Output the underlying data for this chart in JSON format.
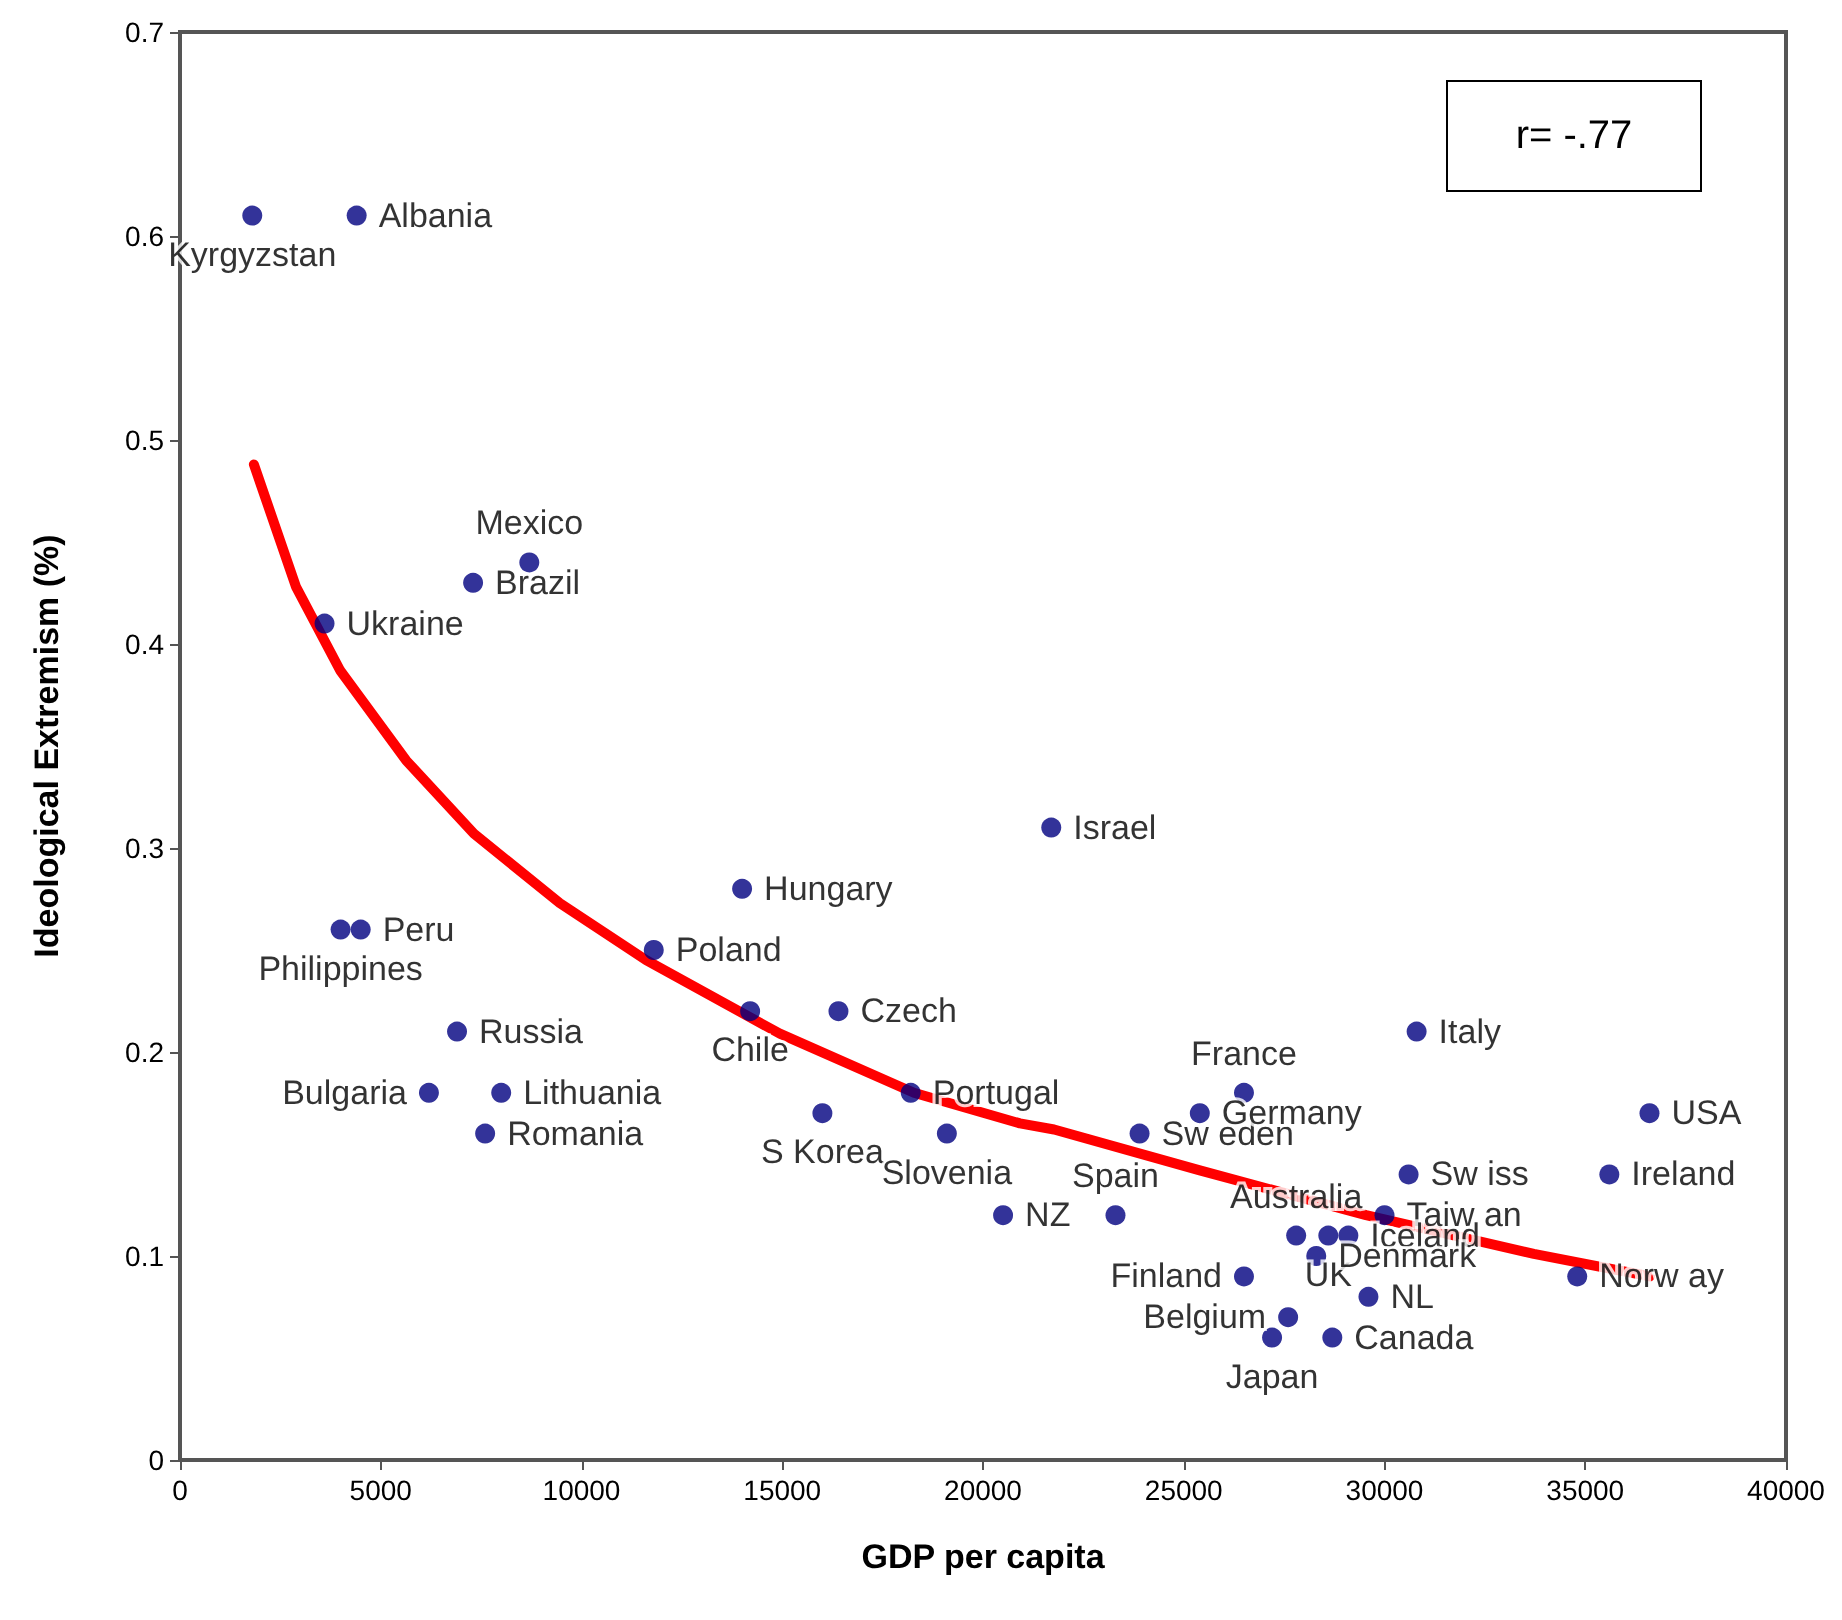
{
  "chart_data": {
    "type": "scatter",
    "xlabel": "GDP per capita",
    "ylabel": "Ideological Extremism (%)",
    "xlim": [
      0,
      40000
    ],
    "xticks": [
      0,
      5000,
      10000,
      15000,
      20000,
      25000,
      30000,
      35000,
      40000
    ],
    "ylim": [
      0,
      0.7
    ],
    "yticks": [
      0,
      0.1,
      0.2,
      0.3,
      0.4,
      0.5,
      0.6,
      0.7
    ],
    "grid": false,
    "annotations": [
      "r= -.77"
    ],
    "series": [
      {
        "color": "#000080",
        "marker": "circle",
        "x": [
          1800,
          4400,
          3600,
          7300,
          8700,
          4000,
          4500,
          6900,
          6200,
          8000,
          7600,
          11800,
          14000,
          14200,
          16400,
          16000,
          18200,
          19100,
          20500,
          21700,
          23300,
          23900,
          25400,
          26500,
          30800,
          36600,
          35600,
          30600,
          30000,
          27800,
          28600,
          29100,
          28300,
          26500,
          29600,
          27600,
          27200,
          28700,
          34800
        ],
        "values": [
          0.61,
          0.61,
          0.41,
          0.43,
          0.44,
          0.26,
          0.26,
          0.21,
          0.18,
          0.18,
          0.16,
          0.25,
          0.28,
          0.22,
          0.22,
          0.17,
          0.18,
          0.16,
          0.12,
          0.31,
          0.12,
          0.16,
          0.17,
          0.18,
          0.21,
          0.17,
          0.14,
          0.14,
          0.12,
          0.11,
          0.11,
          0.11,
          0.1,
          0.09,
          0.08,
          0.07,
          0.06,
          0.06,
          0.09
        ],
        "value_labels": [
          "Kyrgyzstan",
          "Albania",
          "Ukraine",
          "Brazil",
          "Mexico",
          "Philippines",
          "Peru",
          "Russia",
          "Bulgaria",
          "Lithuania",
          "Romania",
          "Poland",
          "Hungary",
          "Chile",
          "Czech",
          "S Korea",
          "Portugal",
          "Slovenia",
          "NZ",
          "Israel",
          "Spain",
          "Sw eden",
          "Germany",
          "France",
          "Italy",
          "USA",
          "Ireland",
          "Sw iss",
          "Taiw an",
          "Australia",
          "UK",
          "Iceland",
          "Denmark",
          "Finland",
          "NL",
          "Belgium",
          "Japan",
          "Canada",
          "Norw ay"
        ]
      },
      {
        "type": "line",
        "color": "#ff0000",
        "marker": "none",
        "line_style": "solid",
        "x": [
          1840,
          2890,
          3990,
          5630,
          7320,
          9460,
          11610,
          14940,
          18280,
          20920,
          21770,
          25400,
          29540,
          33720,
          36610
        ],
        "values": [
          0.488,
          0.428,
          0.387,
          0.343,
          0.307,
          0.273,
          0.245,
          0.209,
          0.18,
          0.165,
          0.162,
          0.142,
          0.12,
          0.101,
          0.09
        ]
      }
    ]
  }
}
